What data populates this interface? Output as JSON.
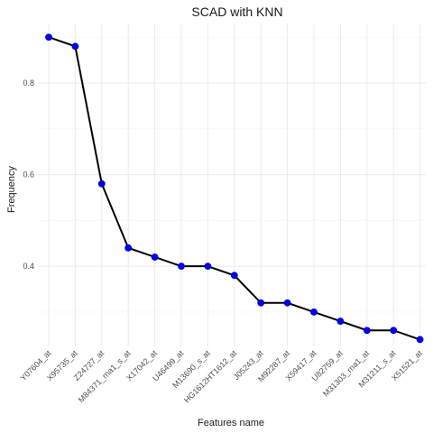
{
  "chart_data": {
    "type": "line",
    "title": "SCAD with KNN",
    "xlabel": "Features name",
    "ylabel": "Frequency",
    "categories": [
      "Y07604_at",
      "X95735_at",
      "Z24727_at",
      "M84371_rna1_s_at",
      "X17042_at",
      "U46499_at",
      "M13690_s_at",
      "HG1612HT1612_at",
      "J05243_at",
      "M92287_at",
      "X59417_at",
      "U82759_at",
      "M31303_rna1_at",
      "M31211_s_at",
      "X51521_at"
    ],
    "values": [
      0.9,
      0.88,
      0.58,
      0.44,
      0.42,
      0.4,
      0.4,
      0.38,
      0.32,
      0.32,
      0.3,
      0.28,
      0.26,
      0.26,
      0.24
    ],
    "ylim": [
      0.225,
      0.93
    ],
    "yticks": [
      0.4,
      0.6,
      0.8
    ],
    "ytick_labels": [
      "0.4",
      "0.6",
      "0.8"
    ],
    "grid": true,
    "colors": {
      "line": "#000000",
      "point": "#0000ff"
    }
  }
}
